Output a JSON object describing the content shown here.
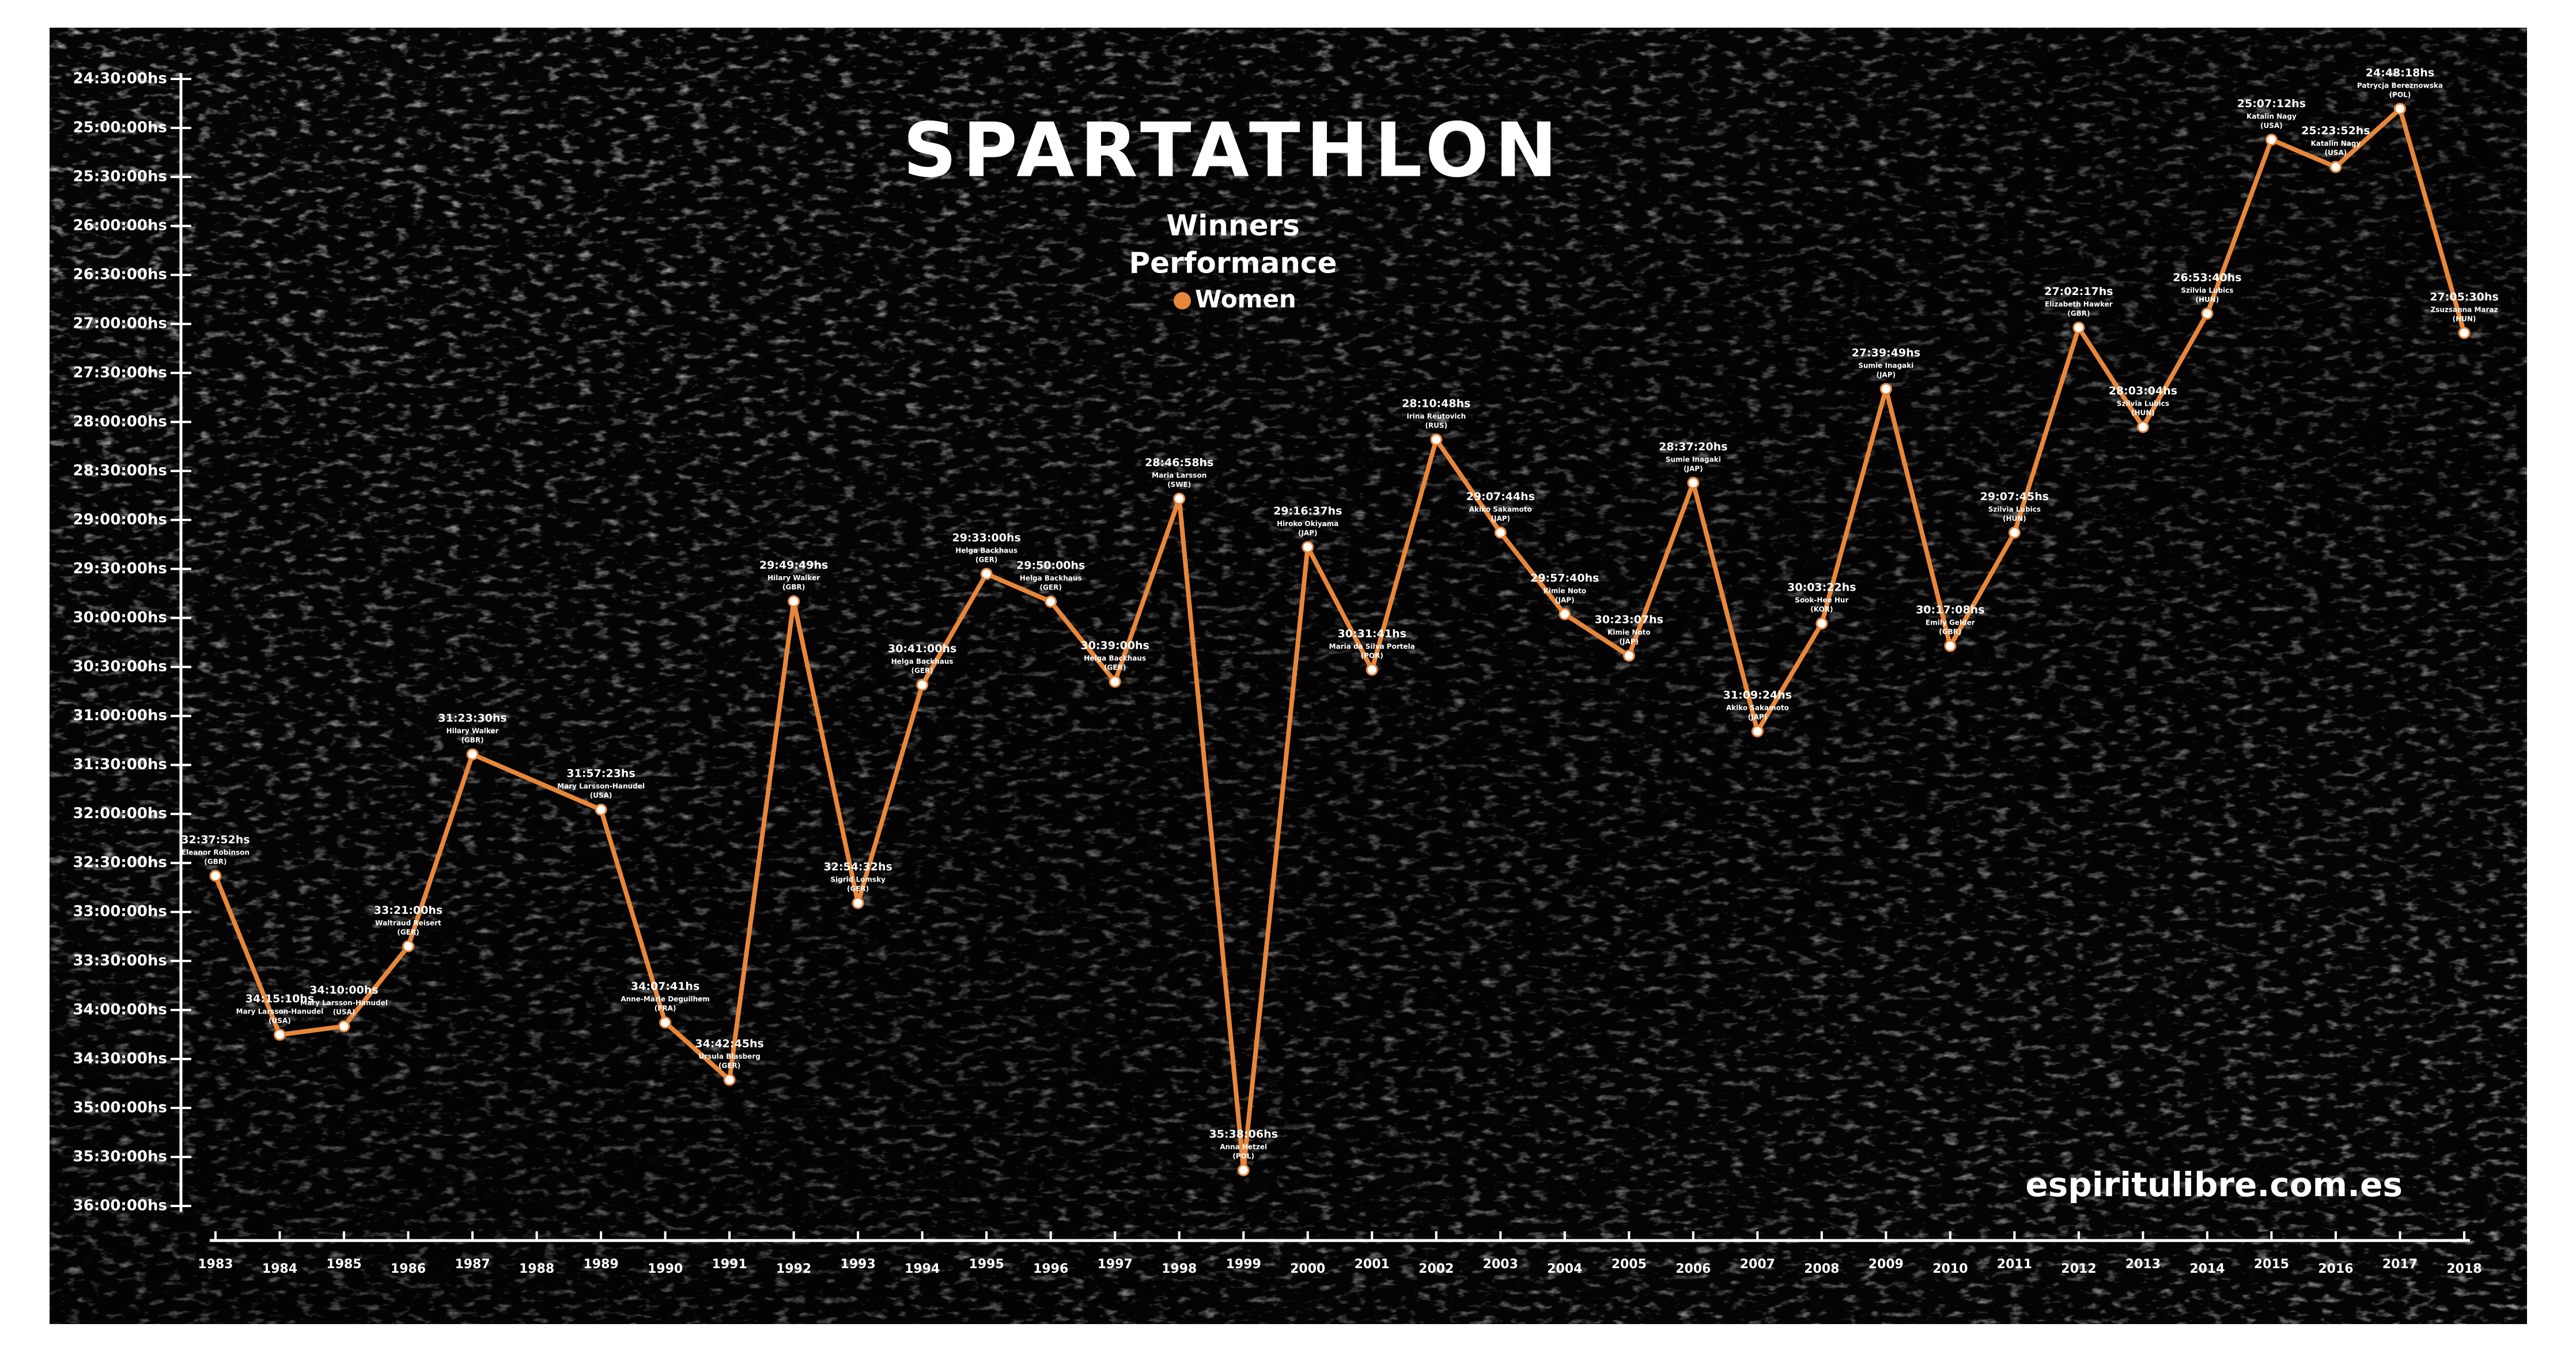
{
  "chart_data": {
    "type": "line",
    "title": "SPARTATHLON",
    "subtitle": [
      "Winners",
      "Performance"
    ],
    "credit": "espiritulibre.com.es",
    "x": [
      1983,
      1984,
      1985,
      1986,
      1987,
      1989,
      1990,
      1991,
      1992,
      1993,
      1994,
      1995,
      1996,
      1997,
      1998,
      1999,
      2000,
      2001,
      2002,
      2003,
      2004,
      2005,
      2006,
      2007,
      2008,
      2009,
      2010,
      2011,
      2012,
      2013,
      2014,
      2015,
      2016,
      2017,
      2018
    ],
    "xlim": [
      1983,
      2018
    ],
    "xticks": [
      1983,
      1984,
      1985,
      1986,
      1987,
      1988,
      1989,
      1990,
      1991,
      1992,
      1993,
      1994,
      1995,
      1996,
      1997,
      1998,
      1999,
      2000,
      2001,
      2002,
      2003,
      2004,
      2005,
      2006,
      2007,
      2008,
      2009,
      2010,
      2011,
      2012,
      2013,
      2014,
      2015,
      2016,
      2017,
      2018
    ],
    "ylim": [
      24.5,
      36
    ],
    "y_reversed": true,
    "yticks": [
      {
        "value": 24.5,
        "label": "24:30:00hs"
      },
      {
        "value": 25,
        "label": "25:00:00hs"
      },
      {
        "value": 25.5,
        "label": "25:30:00hs"
      },
      {
        "value": 26,
        "label": "26:00:00hs"
      },
      {
        "value": 26.5,
        "label": "26:30:00hs"
      },
      {
        "value": 27,
        "label": "27:00:00hs"
      },
      {
        "value": 27.5,
        "label": "27:30:00hs"
      },
      {
        "value": 28,
        "label": "28:00:00hs"
      },
      {
        "value": 28.5,
        "label": "28:30:00hs"
      },
      {
        "value": 29,
        "label": "29:00:00hs"
      },
      {
        "value": 29.5,
        "label": "29:30:00hs"
      },
      {
        "value": 30,
        "label": "30:00:00hs"
      },
      {
        "value": 30.5,
        "label": "30:30:00hs"
      },
      {
        "value": 31,
        "label": "31:00:00hs"
      },
      {
        "value": 31.5,
        "label": "31:30:00hs"
      },
      {
        "value": 32,
        "label": "32:00:00hs"
      },
      {
        "value": 32.5,
        "label": "32:30:00hs"
      },
      {
        "value": 33,
        "label": "33:00:00hs"
      },
      {
        "value": 33.5,
        "label": "33:30:00hs"
      },
      {
        "value": 34,
        "label": "34:00:00hs"
      },
      {
        "value": 34.5,
        "label": "34:30:00hs"
      },
      {
        "value": 35,
        "label": "35:00:00hs"
      },
      {
        "value": 35.5,
        "label": "35:30:00hs"
      },
      {
        "value": 36,
        "label": "36:00:00hs"
      }
    ],
    "series": [
      {
        "name": "Women",
        "color": "#e8873a",
        "values": [
          32.6311,
          34.2528,
          34.1667,
          33.35,
          31.3917,
          31.9564,
          34.1281,
          34.7125,
          29.8303,
          32.9089,
          30.6833,
          29.55,
          29.8333,
          30.65,
          28.7828,
          35.635,
          29.2769,
          30.5281,
          28.18,
          29.1289,
          29.9611,
          30.3853,
          28.6222,
          31.1567,
          30.0561,
          27.6636,
          30.2856,
          29.1292,
          27.0381,
          28.0511,
          26.8944,
          25.12,
          25.3978,
          24.805,
          27.0917
        ],
        "value_labels": [
          "32:37:52hs",
          "34:15:10hs",
          "34:10:00hs",
          "33:21:00hs",
          "31:23:30hs",
          "31:57:23hs",
          "34:07:41hs",
          "34:42:45hs",
          "29:49:49hs",
          "32:54:32hs",
          "30:41:00hs",
          "29:33:00hs",
          "29:50:00hs",
          "30:39:00hs",
          "28:46:58hs",
          "35:38:06hs",
          "29:16:37hs",
          "30:31:41hs",
          "28:10:48hs",
          "29:07:44hs",
          "29:57:40hs",
          "30:23:07hs",
          "28:37:20hs",
          "31:09:24hs",
          "30:03:22hs",
          "27:39:49hs",
          "30:17:08hs",
          "29:07:45hs",
          "27:02:17hs",
          "28:03:04hs",
          "26:53:40hs",
          "25:07:12hs",
          "25:23:52hs",
          "24:48:18hs",
          "27:05:30hs"
        ],
        "athletes": [
          "Eleanor Robinson",
          "Mary Larsson-Hanudel",
          "Mary Larsson-Hanudel",
          "Waltraud Reisert",
          "Hilary Walker",
          "Mary Larsson-Hanudel",
          "Anne-Marie Deguilhem",
          "Ursula Blasberg",
          "Hilary Walker",
          "Sigrid Lomsky",
          "Helga Backhaus",
          "Helga Backhaus",
          "Helga Backhaus",
          "Helga Backhaus",
          "Maria Larsson",
          "Anna Hetzel",
          "Hiroko Okiyama",
          "Maria da Silva Portela",
          "Irina Reutovich",
          "Akiko Sakamoto",
          "Kimie Noto",
          "Kimie Noto",
          "Sumie Inagaki",
          "Akiko Sakamoto",
          "Sook-Hee Hur",
          "Sumie Inagaki",
          "Emily Gelder",
          "Szilvia Lubics",
          "Elizabeth Hawker",
          "Szilvia Lubics",
          "Szilvia Lubics",
          "Katalin Nagy",
          "Katalin Nagy",
          "Patrycja Bereznowska",
          "Zsuzsanna Maraz"
        ],
        "countries": [
          "(GBR)",
          "(USA)",
          "(USA)",
          "(GER)",
          "(GBR)",
          "(USA)",
          "(FRA)",
          "(GER)",
          "(GBR)",
          "(GER)",
          "(GER)",
          "(GER)",
          "(GER)",
          "(GER)",
          "(SWE)",
          "(POL)",
          "(JAP)",
          "(POR)",
          "(RUS)",
          "(JAP)",
          "(JAP)",
          "(JAP)",
          "(JAP)",
          "(JAP)",
          "(KOR)",
          "(JAP)",
          "(GBR)",
          "(HUN)",
          "(GBR)",
          "(HUN)",
          "(HUN)",
          "(USA)",
          "(USA)",
          "(POL)",
          "(HUN)"
        ]
      }
    ]
  }
}
